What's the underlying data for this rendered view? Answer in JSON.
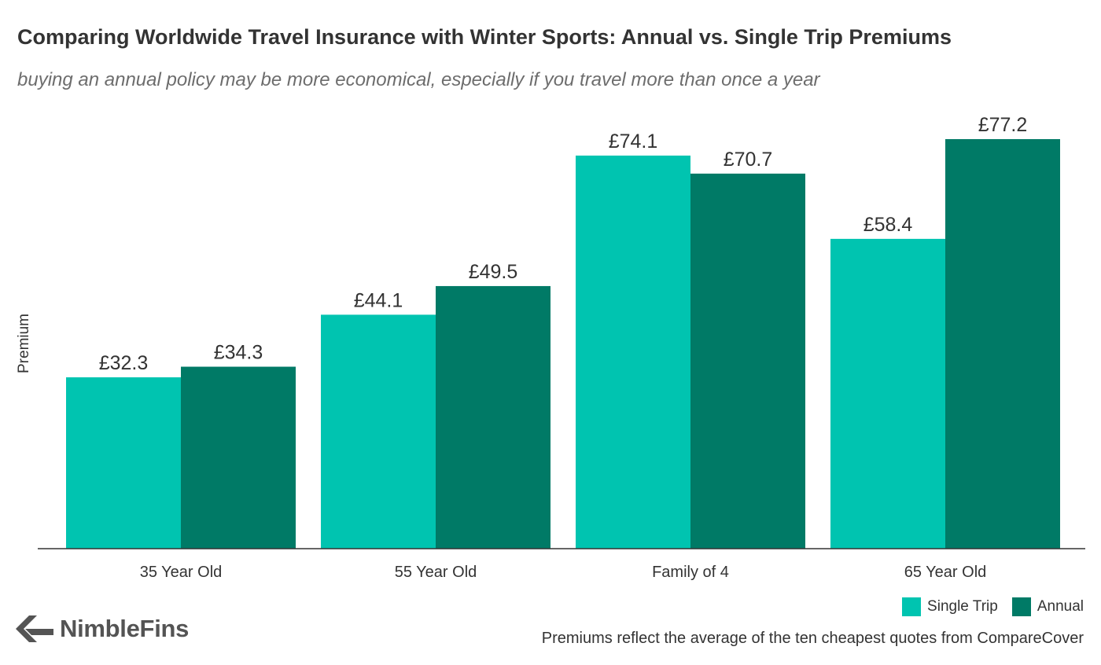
{
  "chart_data": {
    "type": "bar",
    "title": "Comparing Worldwide Travel Insurance with Winter Sports: Annual vs. Single Trip Premiums",
    "subtitle": "buying an annual policy may be more economical, especially if you travel more than once a year",
    "ylabel": "Premium",
    "xlabel": "",
    "categories": [
      "35 Year Old",
      "55 Year Old",
      "Family of 4",
      "65 Year Old"
    ],
    "series": [
      {
        "name": "Single Trip",
        "color": "#00c4b0",
        "values": [
          32.3,
          44.1,
          74.1,
          58.4
        ],
        "labels": [
          "£32.3",
          "£44.1",
          "£74.1",
          "£58.4"
        ]
      },
      {
        "name": "Annual",
        "color": "#007a66",
        "values": [
          34.3,
          49.5,
          70.7,
          77.2
        ],
        "labels": [
          "£34.3",
          "£49.5",
          "£70.7",
          "£77.2"
        ]
      }
    ],
    "ylim": [
      0,
      77.2
    ],
    "grid": false,
    "legend_position": "bottom-right"
  },
  "footer": {
    "source": "Premiums reflect the average of the ten cheapest quotes from CompareCover",
    "brand": "NimbleFins",
    "brand_icon": "arrow-chevron-icon"
  }
}
